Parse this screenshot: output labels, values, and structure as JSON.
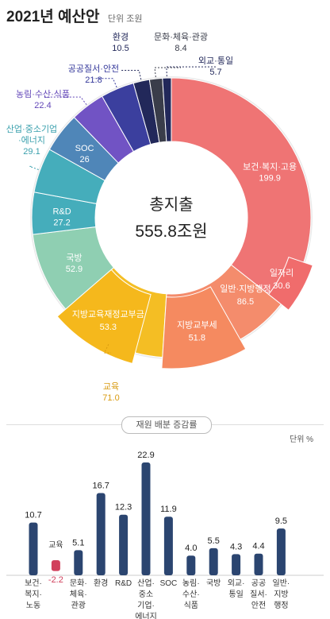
{
  "header": {
    "title": "2021년 예산안",
    "unit": "단위 조원"
  },
  "colors": {
    "red": "#ef7474",
    "salmon": "#f48c6c",
    "yellow": "#f4be24",
    "mint": "#8fcfb2",
    "teal": "#45adbb",
    "steel": "#4f86b8",
    "purple": "#7153c4",
    "indigo": "#3b3f9e",
    "navy": "#22285a",
    "dark": "#3a3d4a",
    "bar": "#2b4570",
    "negative": "#d1405c"
  },
  "donut_labels": {
    "center_top": "총지출",
    "center_bottom": "555.8조원"
  },
  "divider_label": "재원 배분 증감률",
  "bar_unit": "단위 %",
  "chart_data": [
    {
      "type": "pie",
      "title": "2021년 예산안",
      "unit": "조원",
      "total": 555.8,
      "slices": [
        {
          "name": "보건·복지·고용",
          "value": 199.9,
          "color": "#ef7474"
        },
        {
          "name": "일반·지방행정",
          "value": 86.5,
          "color": "#f48c6c",
          "sub": {
            "name": "지방교부세",
            "value": 51.8
          }
        },
        {
          "name": "교육",
          "value": 71.0,
          "color": "#f4be24",
          "sub": {
            "name": "지방교육재정교부금",
            "value": 53.3
          }
        },
        {
          "name": "국방",
          "value": 52.9,
          "color": "#8fcfb2"
        },
        {
          "name": "R&D",
          "value": 27.2,
          "color": "#45adbb"
        },
        {
          "name": "산업·중소기업·에너지",
          "value": 29.1,
          "color": "#45adbb"
        },
        {
          "name": "SOC",
          "value": 26.0,
          "color": "#4f86b8"
        },
        {
          "name": "농림·수산·식품",
          "value": 22.4,
          "color": "#7153c4"
        },
        {
          "name": "공공질서·안전",
          "value": 21.8,
          "color": "#3b3f9e"
        },
        {
          "name": "환경",
          "value": 10.5,
          "color": "#22285a"
        },
        {
          "name": "문화·체육·관광",
          "value": 8.4,
          "color": "#3a3d4a"
        },
        {
          "name": "외교·통일",
          "value": 5.7,
          "color": "#22285a"
        }
      ],
      "callouts": [
        {
          "name": "일자리",
          "value": 30.6
        }
      ]
    },
    {
      "type": "bar",
      "title": "재원 배분 증감률",
      "unit": "%",
      "categories": [
        "보건·복지·노동",
        "교육",
        "문화·체육·관광",
        "환경",
        "R&D",
        "산업·중소기업·에너지",
        "SOC",
        "농림·수산·식품",
        "국방",
        "외교·통일",
        "공공질서·안전",
        "일반·지방행정"
      ],
      "values": [
        10.7,
        -2.2,
        5.1,
        16.7,
        12.3,
        22.9,
        11.9,
        4.0,
        5.5,
        4.3,
        4.4,
        9.5
      ],
      "category_lines": [
        [
          "보건·",
          "복지·",
          "노동"
        ],
        [
          "교육"
        ],
        [
          "문화·",
          "체육·",
          "관광"
        ],
        [
          "환경"
        ],
        [
          "R&D"
        ],
        [
          "산업·",
          "중소",
          "기업·",
          "에너지"
        ],
        [
          "SOC"
        ],
        [
          "농림·",
          "수산·",
          "식품"
        ],
        [
          "국방"
        ],
        [
          "외교·",
          "통일"
        ],
        [
          "공공",
          "질서·",
          "안전"
        ],
        [
          "일반·",
          "지방",
          "행정"
        ]
      ],
      "value_labels": [
        "10.7",
        "-2.2",
        "5.1",
        "16.7",
        "12.3",
        "22.9",
        "11.9",
        "4.0",
        "5.5",
        "4.3",
        "4.4",
        "9.5"
      ]
    }
  ]
}
